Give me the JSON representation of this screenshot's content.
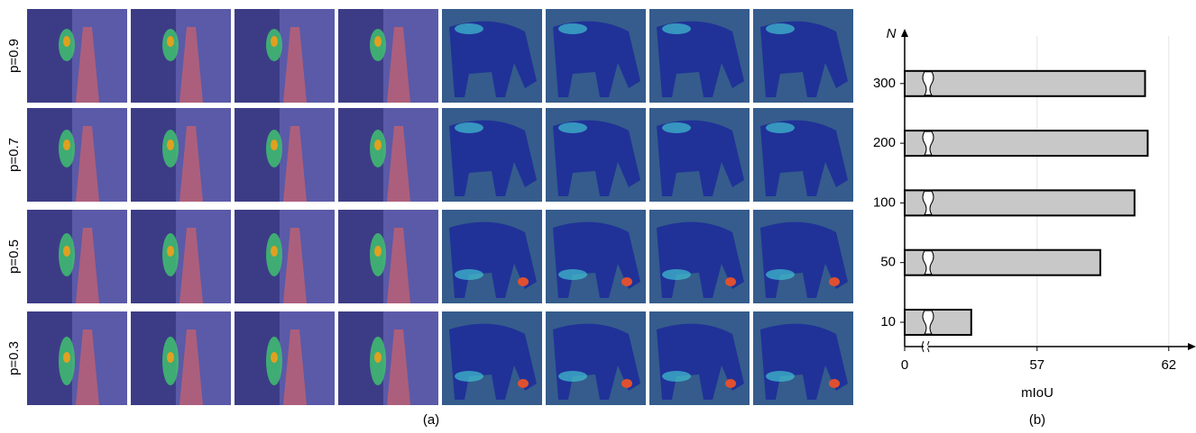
{
  "panel_a": {
    "caption": "(a)",
    "row_labels": [
      "p=0.9",
      "p=0.7",
      "p=0.5",
      "p=0.3"
    ]
  },
  "chart_data": {
    "type": "bar",
    "orientation": "horizontal",
    "caption": "(b)",
    "y_label": "N",
    "x_label": "mIoU",
    "categories": [
      "10",
      "50",
      "100",
      "200",
      "300"
    ],
    "values": [
      54.5,
      59.4,
      60.7,
      61.2,
      61.1
    ],
    "color": "#c8c8c8",
    "xlim": [
      0,
      62.7
    ],
    "x_break": [
      1,
      53
    ],
    "xticks": [
      0,
      57,
      62
    ],
    "grid": true
  }
}
